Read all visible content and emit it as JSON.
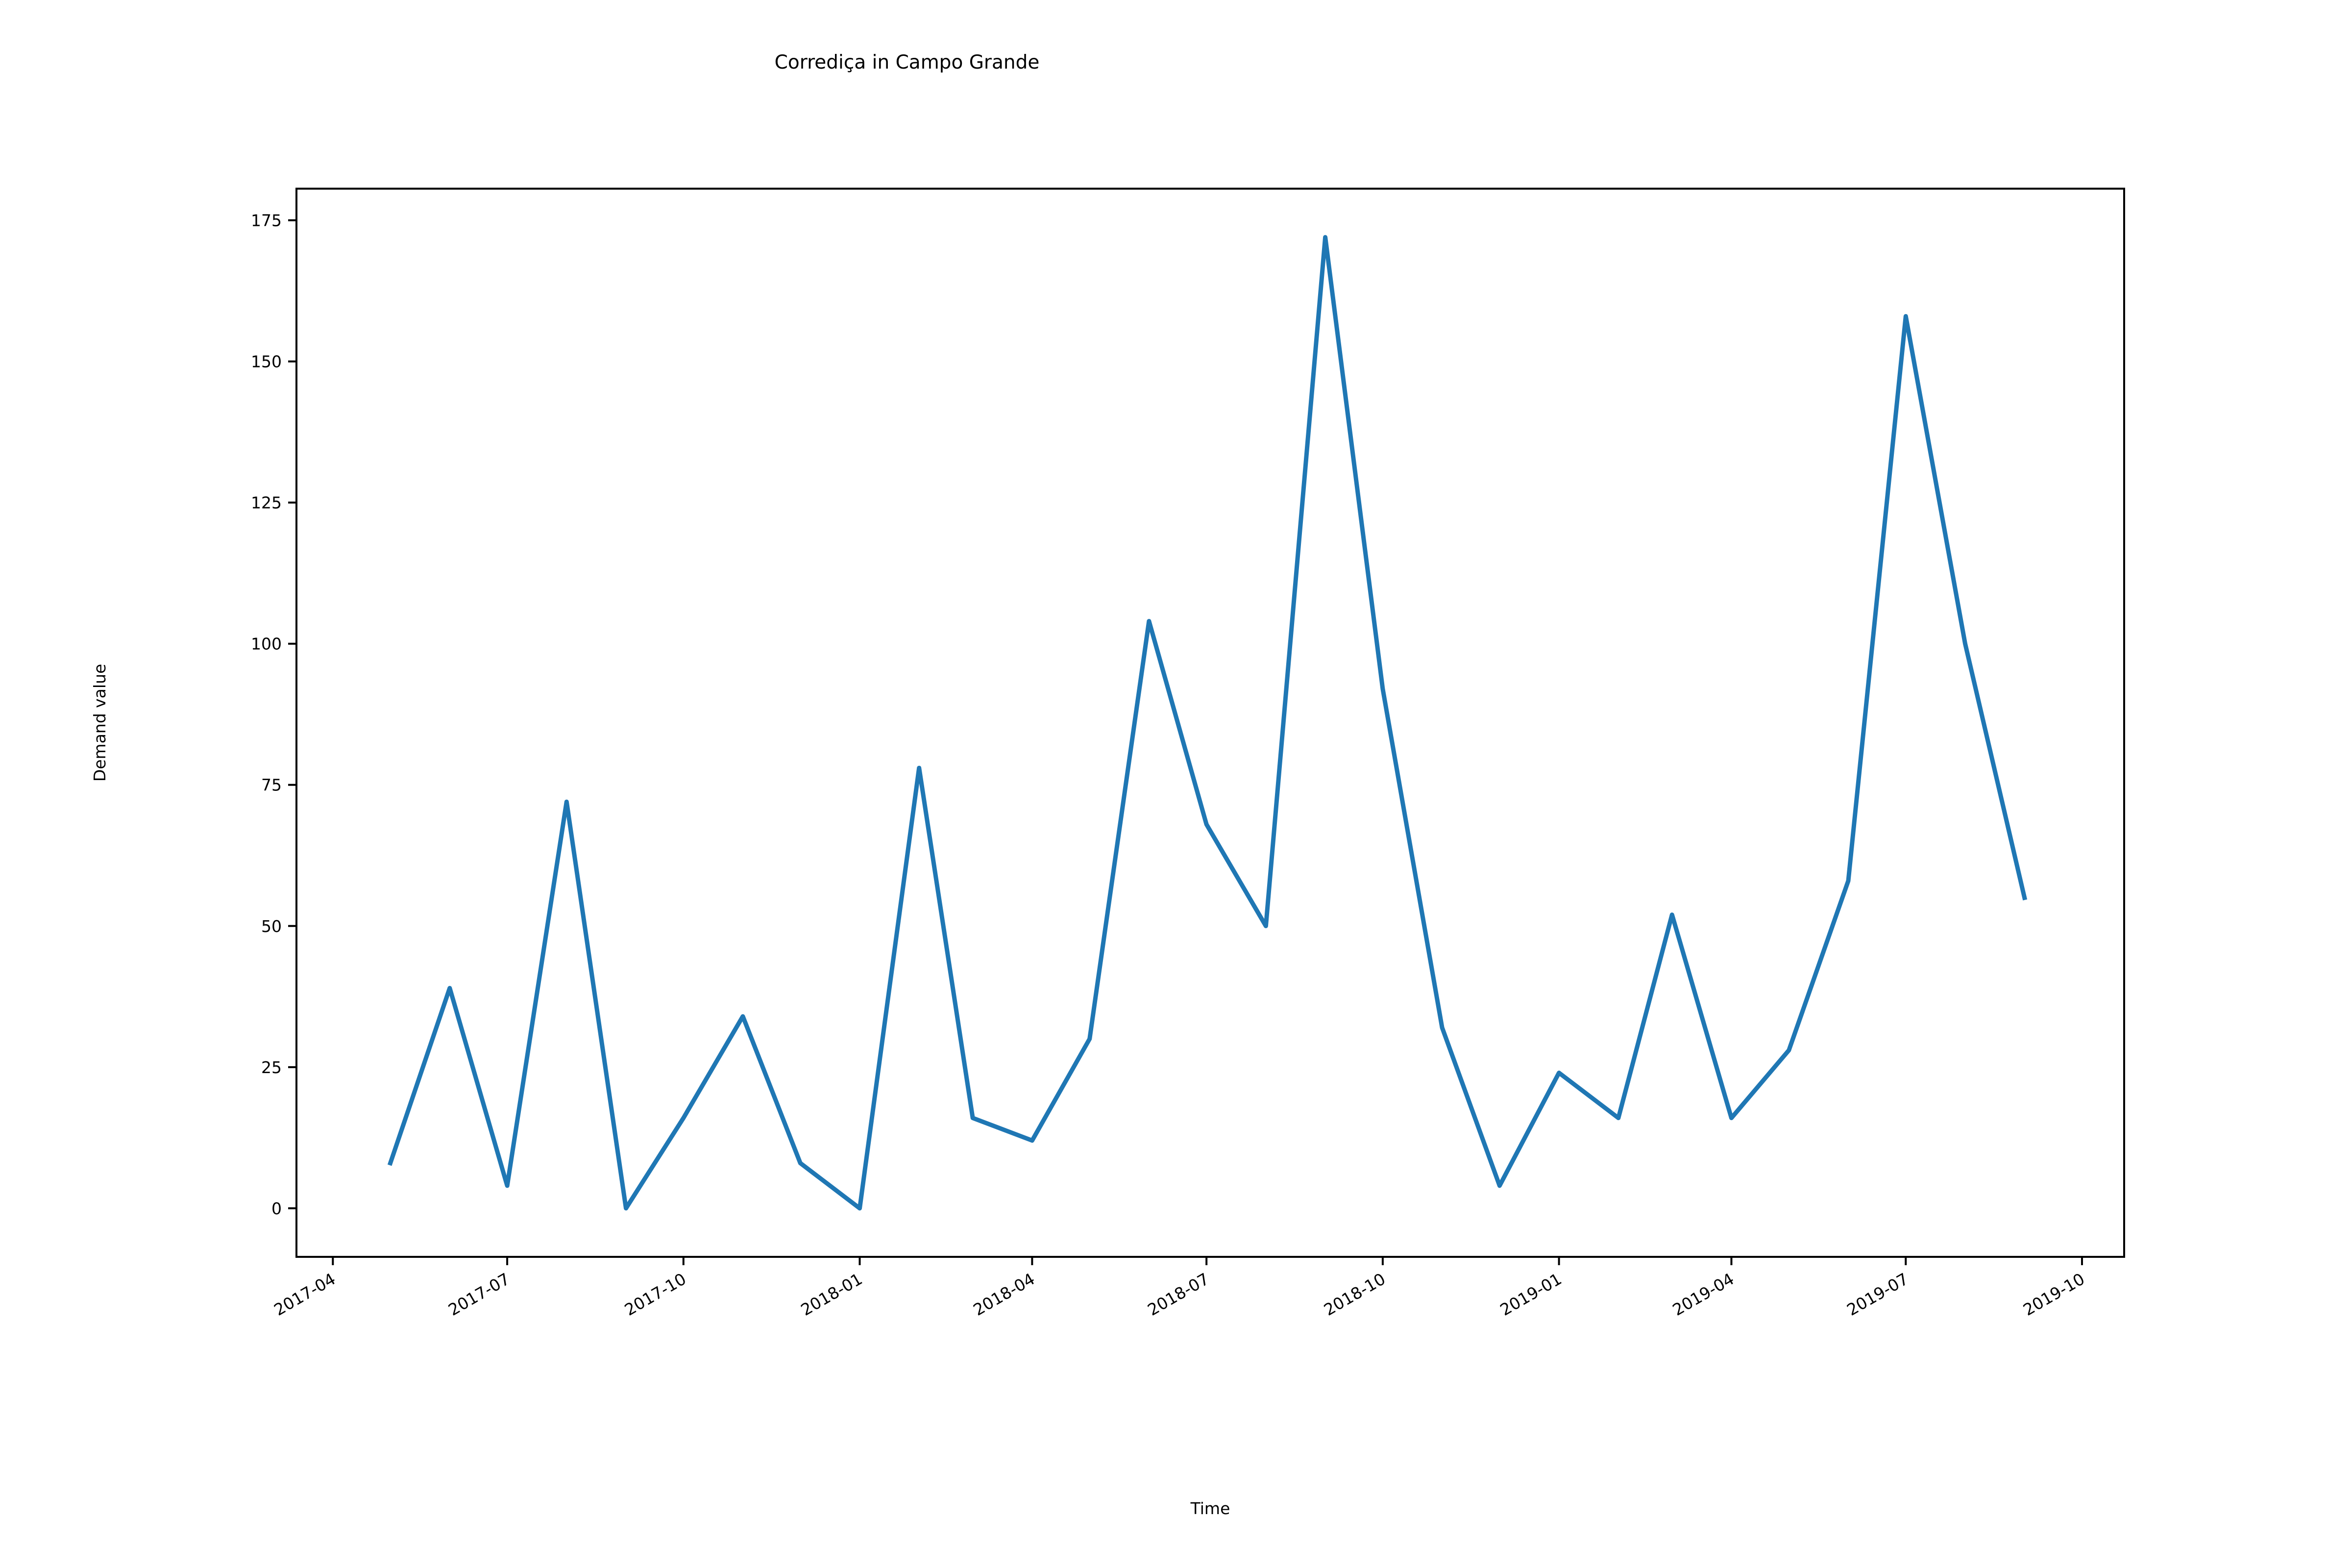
{
  "chart_data": {
    "type": "line",
    "title": "Corrediça in Campo Grande",
    "xlabel": "Time",
    "ylabel": "Demand value",
    "x_tick_labels": [
      "2017-04",
      "2017-07",
      "2017-10",
      "2018-01",
      "2018-04",
      "2018-07",
      "2018-10",
      "2019-01",
      "2019-04",
      "2019-07",
      "2019-10"
    ],
    "y_ticks": [
      0,
      25,
      50,
      75,
      100,
      125,
      150,
      175
    ],
    "ylim": [
      -8.6,
      180.6
    ],
    "xlim": [
      "2017-03-13",
      "2019-10-23"
    ],
    "grid": false,
    "color": "#1f77b4",
    "series": [
      {
        "x": [
          "2017-05-01",
          "2017-06-01",
          "2017-07-01",
          "2017-08-01",
          "2017-09-01",
          "2017-10-01",
          "2017-11-01",
          "2017-12-01",
          "2018-01-01",
          "2018-02-01",
          "2018-03-01",
          "2018-04-01",
          "2018-05-01",
          "2018-06-01",
          "2018-07-01",
          "2018-08-01",
          "2018-09-01",
          "2018-10-01",
          "2018-11-01",
          "2018-12-01",
          "2019-01-01",
          "2019-02-01",
          "2019-03-01",
          "2019-04-01",
          "2019-05-01",
          "2019-06-01",
          "2019-07-01",
          "2019-08-01",
          "2019-09-01"
        ],
        "values": [
          8,
          39,
          4,
          72,
          0,
          16,
          34,
          8,
          0,
          78,
          16,
          12,
          30,
          104,
          68,
          50,
          172,
          92,
          32,
          4,
          24,
          16,
          52,
          16,
          28,
          58,
          158,
          100,
          55
        ]
      }
    ]
  }
}
